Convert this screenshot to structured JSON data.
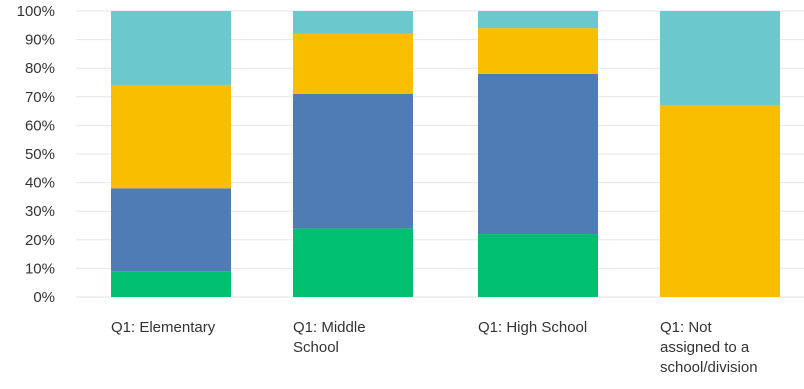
{
  "chart_data": {
    "type": "bar",
    "stacked": true,
    "percent": true,
    "categories": [
      [
        "Q1: Elementary"
      ],
      [
        "Q1: Middle",
        "School"
      ],
      [
        "Q1: High School"
      ],
      [
        "Q1: Not",
        "assigned to a",
        "school/division"
      ]
    ],
    "series": [
      {
        "color": "#00bf6f",
        "values": [
          9,
          24,
          22,
          0
        ]
      },
      {
        "color": "#507cb6",
        "values": [
          29,
          47,
          56,
          0
        ]
      },
      {
        "color": "#f9be00",
        "values": [
          36,
          21,
          16,
          67
        ]
      },
      {
        "color": "#6bc8cd",
        "values": [
          26,
          8,
          6,
          33
        ]
      }
    ],
    "ylim": [
      0,
      100
    ],
    "yticks": [
      "0%",
      "10%",
      "20%",
      "30%",
      "40%",
      "50%",
      "60%",
      "70%",
      "80%",
      "90%",
      "100%"
    ],
    "grid": true,
    "legend": false
  }
}
